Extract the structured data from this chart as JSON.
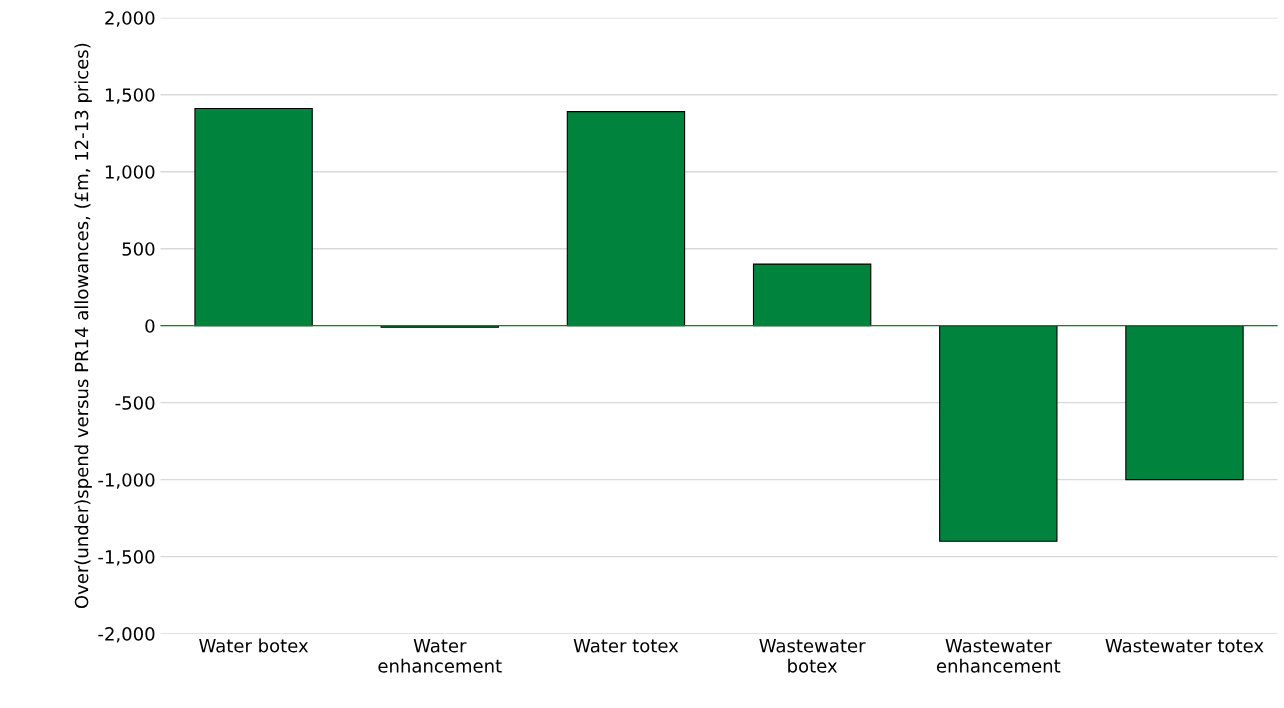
{
  "chart_data": {
    "type": "bar",
    "ylabel": "Over(under)spend versus PR14 allowances, (£m, 12-13 prices)",
    "categories": [
      "Water botex",
      "Water\nenhancement",
      "Water totex",
      "Wastewater\nbotex",
      "Wastewater\nenhancement",
      "Wastewater totex"
    ],
    "values": [
      1410,
      -10,
      1390,
      400,
      -1400,
      -1000
    ],
    "color": "#00843d",
    "ylim": [
      -2000,
      2000
    ],
    "yticks": [
      {
        "value": -2000,
        "label": "-2,000"
      },
      {
        "value": -1500,
        "label": "-1,500"
      },
      {
        "value": -1000,
        "label": "-1,000"
      },
      {
        "value": -500,
        "label": "-500"
      },
      {
        "value": 0,
        "label": "0"
      },
      {
        "value": 500,
        "label": "500"
      },
      {
        "value": 1000,
        "label": "1,000"
      },
      {
        "value": 1500,
        "label": "1,500"
      },
      {
        "value": 2000,
        "label": "2,000"
      }
    ],
    "ref_lines": [
      {
        "axis": "y",
        "value": 0,
        "color": "#00843d"
      }
    ],
    "grid": "y",
    "legend": false
  }
}
